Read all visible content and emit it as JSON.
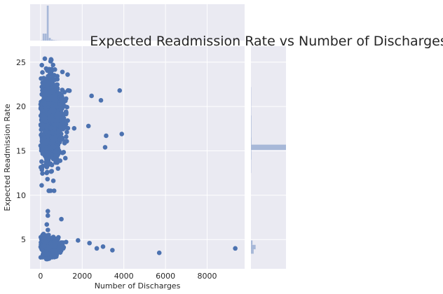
{
  "chart_data": {
    "type": "scatter",
    "subtype": "jointplot",
    "title": "Expected Readmission Rate vs Number of Discharges",
    "xlabel": "Number of Discharges",
    "ylabel": "Expected Readmission Rate",
    "xlim": [
      -500,
      9800
    ],
    "ylim": [
      1.7,
      26.8
    ],
    "x_ticks": [
      0,
      2000,
      4000,
      6000,
      8000
    ],
    "y_ticks": [
      5,
      10,
      15,
      20,
      25
    ],
    "grid": true,
    "colors": {
      "background": "#eaeaf2",
      "grid": "#ffffff",
      "points": "#4c72b0",
      "histogram": "#a7b8d8",
      "text": "#262626"
    },
    "clusters": [
      {
        "x_center": 300,
        "x_spread": 350,
        "y_center": 18.5,
        "y_spread": 2.6,
        "count": 1400,
        "y_min": 10.5,
        "y_max": 25.6
      },
      {
        "x_center": 250,
        "x_spread": 300,
        "y_center": 4.1,
        "y_spread": 0.6,
        "count": 500,
        "y_min": 2.8,
        "y_max": 6.5
      }
    ],
    "outliers": [
      [
        3800,
        21.8
      ],
      [
        3900,
        16.9
      ],
      [
        3150,
        16.7
      ],
      [
        3100,
        15.4
      ],
      [
        2300,
        17.8
      ],
      [
        2900,
        20.7
      ],
      [
        2450,
        21.2
      ],
      [
        1300,
        23.6
      ],
      [
        1050,
        23.9
      ],
      [
        5700,
        3.5
      ],
      [
        9350,
        4.0
      ],
      [
        3450,
        3.8
      ],
      [
        3000,
        4.2
      ],
      [
        2700,
        4.0
      ],
      [
        1000,
        7.3
      ],
      [
        350,
        8.2
      ],
      [
        350,
        7.7
      ],
      [
        300,
        6.7
      ],
      [
        2350,
        4.6
      ],
      [
        1800,
        4.9
      ]
    ],
    "x_histogram": {
      "bin_edges": [
        0,
        100,
        200,
        300,
        400,
        500,
        600,
        700,
        800,
        900,
        1000
      ],
      "counts": [
        5,
        180,
        180,
        900,
        70,
        25,
        12,
        6,
        3,
        2
      ],
      "max_count": 900
    },
    "y_histogram": {
      "bins": [
        [
          3.4,
          3.9,
          70
        ],
        [
          3.9,
          4.4,
          120
        ],
        [
          4.4,
          4.9,
          40
        ],
        [
          12.5,
          14.0,
          6
        ],
        [
          14.0,
          15.1,
          10
        ],
        [
          15.1,
          15.7,
          900
        ],
        [
          15.7,
          16.5,
          15
        ],
        [
          16.5,
          19.0,
          12
        ],
        [
          19.0,
          22.2,
          6
        ]
      ],
      "max_count": 900
    }
  }
}
